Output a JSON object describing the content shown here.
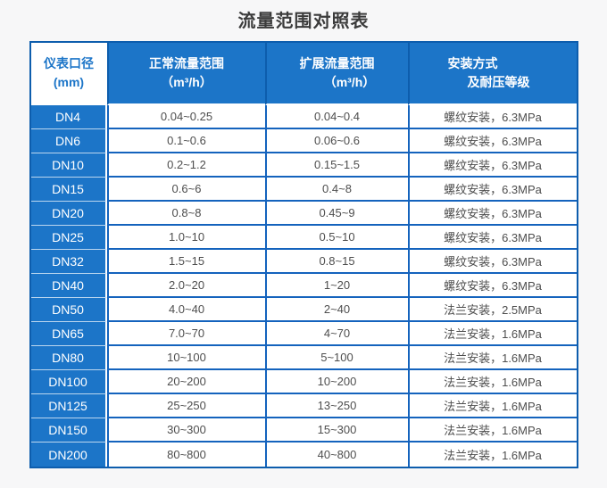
{
  "title": "流量范围对照表",
  "table": {
    "headers": [
      {
        "line1": "仪表口径",
        "line2": "(mm)"
      },
      {
        "line1": "正常流量范围",
        "line2": "（m³/h）"
      },
      {
        "line1": "扩展流量范围",
        "line2": "（m³/h）"
      },
      {
        "line1": "安装方式",
        "line2": "及耐压等级"
      }
    ],
    "rows": [
      {
        "dn": "DN4",
        "normal": "0.04~0.25",
        "extended": "0.04~0.4",
        "install": "螺纹安装，6.3MPa"
      },
      {
        "dn": "DN6",
        "normal": "0.1~0.6",
        "extended": "0.06~0.6",
        "install": "螺纹安装，6.3MPa"
      },
      {
        "dn": "DN10",
        "normal": "0.2~1.2",
        "extended": "0.15~1.5",
        "install": "螺纹安装，6.3MPa"
      },
      {
        "dn": "DN15",
        "normal": "0.6~6",
        "extended": "0.4~8",
        "install": "螺纹安装，6.3MPa"
      },
      {
        "dn": "DN20",
        "normal": "0.8~8",
        "extended": "0.45~9",
        "install": "螺纹安装，6.3MPa"
      },
      {
        "dn": "DN25",
        "normal": "1.0~10",
        "extended": "0.5~10",
        "install": "螺纹安装，6.3MPa"
      },
      {
        "dn": "DN32",
        "normal": "1.5~15",
        "extended": "0.8~15",
        "install": "螺纹安装，6.3MPa"
      },
      {
        "dn": "DN40",
        "normal": "2.0~20",
        "extended": "1~20",
        "install": "螺纹安装，6.3MPa"
      },
      {
        "dn": "DN50",
        "normal": "4.0~40",
        "extended": "2~40",
        "install": "法兰安装，2.5MPa"
      },
      {
        "dn": "DN65",
        "normal": "7.0~70",
        "extended": "4~70",
        "install": "法兰安装，1.6MPa"
      },
      {
        "dn": "DN80",
        "normal": "10~100",
        "extended": "5~100",
        "install": "法兰安装，1.6MPa"
      },
      {
        "dn": "DN100",
        "normal": "20~200",
        "extended": "10~200",
        "install": "法兰安装，1.6MPa"
      },
      {
        "dn": "DN125",
        "normal": "25~250",
        "extended": "13~250",
        "install": "法兰安装，1.6MPa"
      },
      {
        "dn": "DN150",
        "normal": "30~300",
        "extended": "15~300",
        "install": "法兰安装，1.6MPa"
      },
      {
        "dn": "DN200",
        "normal": "80~800",
        "extended": "40~800",
        "install": "法兰安装，1.6MPa"
      }
    ]
  },
  "colors": {
    "header_blue": "#1c75c8",
    "outer_border_blue": "#0d5dad",
    "grid_border_blue": "#1463bd",
    "data_text": "#4e4e4e",
    "title_text": "#3b3b3b",
    "page_background": "#f7f7f8"
  }
}
